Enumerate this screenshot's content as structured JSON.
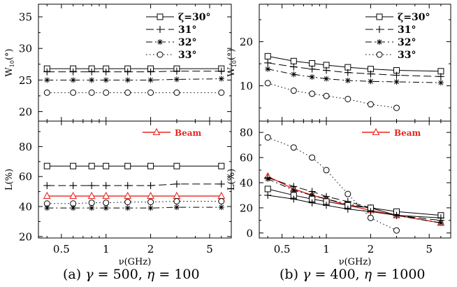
{
  "figure": {
    "captions": [
      {
        "label": "(a)",
        "sym1": "γ",
        "val1": "500",
        "sym2": "η",
        "val2": "100"
      },
      {
        "label": "(b)",
        "sym1": "γ",
        "val1": "400",
        "sym2": "η",
        "val2": "1000"
      }
    ]
  },
  "chart_data": [
    {
      "id": "a-top",
      "type": "line",
      "xscale": "log",
      "xlim": [
        0.35,
        7.0
      ],
      "ylim": [
        18.5,
        37
      ],
      "ylabel": "W10(°)",
      "yticks": [
        20,
        25,
        30,
        35
      ],
      "ytick_labels": [
        "20",
        "25",
        "30",
        "35"
      ],
      "xticks": [
        0.5,
        1,
        2,
        5
      ],
      "xtick_labels": [],
      "legend": {
        "location": "top-right",
        "entries": [
          "ζ=30°",
          "31°",
          "32°",
          "33°"
        ]
      },
      "x": [
        0.4,
        0.6,
        0.8,
        1.0,
        1.4,
        2.0,
        3.0,
        6.0
      ],
      "series": [
        {
          "name": "ζ=30°",
          "style": "solid",
          "marker": "square",
          "color": "#000000",
          "values": [
            26.8,
            26.8,
            26.8,
            26.8,
            26.8,
            26.8,
            26.8,
            26.8
          ]
        },
        {
          "name": "31°",
          "style": "dashed",
          "marker": "plus",
          "color": "#000000",
          "values": [
            26.3,
            26.3,
            26.3,
            26.3,
            26.3,
            26.3,
            26.4,
            26.4
          ]
        },
        {
          "name": "32°",
          "style": "dashdot",
          "marker": "star",
          "color": "#000000",
          "values": [
            25.0,
            25.0,
            25.0,
            25.0,
            25.0,
            25.0,
            25.1,
            25.2
          ]
        },
        {
          "name": "33°",
          "style": "dotted",
          "marker": "circle",
          "color": "#000000",
          "values": [
            23.0,
            23.0,
            23.0,
            23.0,
            23.0,
            23.0,
            23.0,
            23.0
          ]
        }
      ]
    },
    {
      "id": "a-bottom",
      "type": "line",
      "xscale": "log",
      "xlim": [
        0.35,
        7.0
      ],
      "ylim": [
        19,
        97
      ],
      "ylabel": "L(%)",
      "xlabel": "ν(GHz)",
      "yticks": [
        20,
        40,
        60,
        80
      ],
      "ytick_labels": [
        "20",
        "40",
        "60",
        "80"
      ],
      "xticks": [
        0.5,
        1,
        2,
        5
      ],
      "xtick_labels": [
        "0.5",
        "1",
        "2",
        "5"
      ],
      "legend": {
        "location": "top-right",
        "entries": [
          "Beam"
        ]
      },
      "x": [
        0.4,
        0.6,
        0.8,
        1.0,
        1.4,
        2.0,
        3.0,
        6.0
      ],
      "series": [
        {
          "name": "",
          "style": "solid",
          "marker": "square",
          "color": "#000000",
          "values": [
            67,
            67,
            67,
            67,
            67,
            67,
            67,
            67
          ]
        },
        {
          "name": "",
          "style": "dashed",
          "marker": "plus",
          "color": "#000000",
          "values": [
            54,
            54,
            54,
            54,
            54,
            54,
            55,
            55
          ]
        },
        {
          "name": "Beam",
          "style": "solid",
          "marker": "triangle",
          "color": "#e8271e",
          "values": [
            47,
            47,
            47,
            47,
            47,
            47,
            47,
            47
          ]
        },
        {
          "name": "",
          "style": "dotted",
          "marker": "circle",
          "color": "#000000",
          "values": [
            42,
            42,
            42.5,
            42.5,
            43,
            43,
            43.5,
            43.5
          ]
        },
        {
          "name": "",
          "style": "dashdot",
          "marker": "star",
          "color": "#000000",
          "values": [
            39,
            39,
            39,
            39,
            39,
            39,
            39.5,
            39.5
          ]
        }
      ]
    },
    {
      "id": "b-top",
      "type": "line",
      "xscale": "log",
      "xlim": [
        0.35,
        7.0
      ],
      "ylim": [
        2,
        28.5
      ],
      "ylabel": "W10(°)",
      "yticks": [
        10,
        20
      ],
      "ytick_labels": [
        "10",
        "20"
      ],
      "xticks": [
        0.5,
        1,
        2,
        5
      ],
      "xtick_labels": [],
      "legend": {
        "location": "top-right",
        "entries": [
          "ζ=30°",
          "31°",
          "32°",
          "33°"
        ]
      },
      "series": [
        {
          "name": "ζ=30°",
          "style": "solid",
          "marker": "square",
          "color": "#000000",
          "x": [
            0.4,
            0.6,
            0.8,
            1.0,
            1.4,
            2.0,
            3.0,
            6.0
          ],
          "values": [
            16.7,
            15.6,
            15.1,
            14.7,
            14.2,
            13.8,
            13.5,
            13.3
          ]
        },
        {
          "name": "31°",
          "style": "dashed",
          "marker": "plus",
          "color": "#000000",
          "x": [
            0.4,
            0.6,
            0.8,
            1.0,
            1.4,
            2.0,
            3.0,
            6.0
          ],
          "values": [
            15.2,
            14.3,
            13.8,
            13.5,
            13.0,
            12.7,
            12.4,
            12.1
          ]
        },
        {
          "name": "32°",
          "style": "dashdot",
          "marker": "star",
          "color": "#000000",
          "x": [
            0.4,
            0.6,
            0.8,
            1.0,
            1.4,
            2.0,
            3.0,
            6.0
          ],
          "values": [
            13.8,
            12.6,
            12.0,
            11.6,
            11.2,
            11.0,
            10.9,
            10.7
          ]
        },
        {
          "name": "33°",
          "style": "dotted",
          "marker": "circle",
          "color": "#000000",
          "x": [
            0.4,
            0.6,
            0.8,
            1.0,
            1.4,
            2.0,
            3.0
          ],
          "values": [
            10.6,
            8.9,
            8.2,
            7.7,
            7.0,
            5.8,
            5.0
          ]
        }
      ]
    },
    {
      "id": "b-bottom",
      "type": "line",
      "xscale": "log",
      "xlim": [
        0.35,
        7.0
      ],
      "ylim": [
        -4,
        89
      ],
      "ylabel": "L(%)",
      "xlabel": "ν(GHz)",
      "yticks": [
        0,
        20,
        40,
        60,
        80
      ],
      "ytick_labels": [
        "0",
        "20",
        "40",
        "60",
        "80"
      ],
      "xticks": [
        0.5,
        1,
        2,
        5
      ],
      "xtick_labels": [
        "0.5",
        "1",
        "2",
        "5"
      ],
      "legend": {
        "location": "top-right",
        "entries": [
          "Beam"
        ]
      },
      "series": [
        {
          "name": "",
          "style": "dotted",
          "marker": "circle",
          "color": "#000000",
          "x": [
            0.4,
            0.6,
            0.8,
            1.0,
            1.4,
            2.0,
            3.0
          ],
          "values": [
            76,
            68,
            60,
            50,
            31,
            12,
            2
          ]
        },
        {
          "name": "Beam",
          "style": "solid",
          "marker": "triangle",
          "color": "#e8271e",
          "x": [
            0.4,
            0.6,
            0.8,
            1.0,
            1.4,
            2.0,
            3.0,
            6.0
          ],
          "values": [
            45,
            35,
            30,
            27,
            22,
            18,
            14,
            8
          ]
        },
        {
          "name": "",
          "style": "dashed",
          "marker": "plus",
          "color": "#000000",
          "x": [
            0.4,
            0.6,
            0.8,
            1.0,
            1.4,
            2.0,
            3.0,
            6.0
          ],
          "values": [
            44,
            37,
            33,
            29,
            25,
            20,
            14,
            10
          ]
        },
        {
          "name": "",
          "style": "dashdot",
          "marker": "star",
          "color": "#000000",
          "x": [
            0.4,
            0.6,
            0.8,
            1.0,
            1.4,
            2.0,
            3.0,
            6.0
          ],
          "values": [
            43,
            34,
            30,
            27,
            23,
            20,
            14,
            8
          ]
        },
        {
          "name": "",
          "style": "solid",
          "marker": "square",
          "color": "#000000",
          "x": [
            0.4,
            0.6,
            0.8,
            1.0,
            1.4,
            2.0,
            3.0,
            6.0
          ],
          "values": [
            35,
            30,
            27,
            25,
            22,
            20,
            17,
            14
          ]
        },
        {
          "name": "",
          "style": "solid",
          "marker": "plus",
          "color": "#000000",
          "x": [
            0.4,
            0.6,
            0.8,
            1.0,
            1.4,
            2.0,
            3.0,
            6.0
          ],
          "values": [
            30,
            27,
            24,
            22,
            19,
            17,
            14,
            12
          ]
        }
      ]
    }
  ]
}
